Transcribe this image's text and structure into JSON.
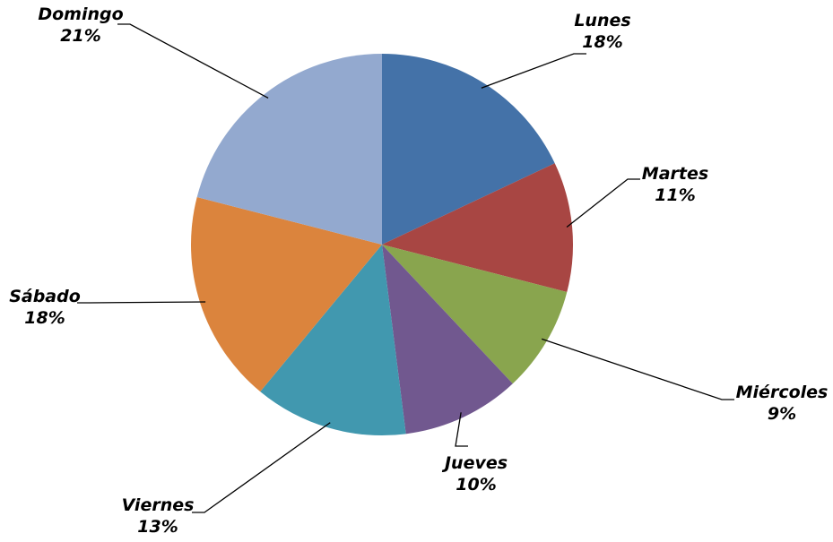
{
  "chart_data": {
    "type": "pie",
    "title": "",
    "categories": [
      "Lunes",
      "Martes",
      "Miércoles",
      "Jueves",
      "Viernes",
      "Sábado",
      "Domingo"
    ],
    "values": [
      18,
      11,
      9,
      10,
      13,
      18,
      21
    ],
    "value_labels": [
      "18%",
      "11%",
      "9%",
      "10%",
      "13%",
      "18%",
      "21%"
    ],
    "colors": [
      "#4472A8",
      "#A84643",
      "#89A54E",
      "#71588F",
      "#4198AF",
      "#DB843D",
      "#93A9CF"
    ],
    "start_angle": "12 o'clock",
    "direction": "clockwise",
    "legend": "none"
  }
}
